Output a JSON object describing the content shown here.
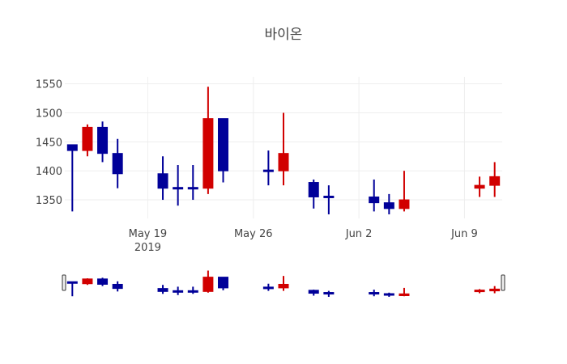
{
  "chart_data": {
    "type": "candlestick",
    "title": "바이온",
    "xlabel": "",
    "ylabel": "",
    "ylim": [
      1318,
      1562
    ],
    "y_ticks": [
      1350,
      1400,
      1450,
      1500,
      1550
    ],
    "x_ticks": [
      {
        "label": "May 19",
        "sub": "2019",
        "date": "2019-05-19"
      },
      {
        "label": "May 26",
        "sub": "",
        "date": "2019-05-26"
      },
      {
        "label": "Jun 2",
        "sub": "",
        "date": "2019-06-02"
      },
      {
        "label": "Jun 9",
        "sub": "",
        "date": "2019-06-09"
      }
    ],
    "x_range": [
      "2019-05-13T12:00",
      "2019-06-11T12:00"
    ],
    "grid": true,
    "increasing_color": "#d10000",
    "decreasing_color": "#000099",
    "rangeslider": true,
    "candles": [
      {
        "date": "2019-05-14",
        "open": 1445,
        "high": 1445,
        "low": 1330,
        "close": 1435
      },
      {
        "date": "2019-05-15",
        "open": 1435,
        "high": 1480,
        "low": 1425,
        "close": 1475
      },
      {
        "date": "2019-05-16",
        "open": 1475,
        "high": 1485,
        "low": 1415,
        "close": 1430
      },
      {
        "date": "2019-05-17",
        "open": 1430,
        "high": 1455,
        "low": 1370,
        "close": 1395
      },
      {
        "date": "2019-05-20",
        "open": 1395,
        "high": 1425,
        "low": 1350,
        "close": 1370
      },
      {
        "date": "2019-05-21",
        "open": 1370,
        "high": 1410,
        "low": 1340,
        "close": 1370
      },
      {
        "date": "2019-05-22",
        "open": 1370,
        "high": 1410,
        "low": 1350,
        "close": 1370
      },
      {
        "date": "2019-05-23",
        "open": 1370,
        "high": 1545,
        "low": 1360,
        "close": 1490
      },
      {
        "date": "2019-05-24",
        "open": 1490,
        "high": 1490,
        "low": 1380,
        "close": 1400
      },
      {
        "date": "2019-05-27",
        "open": 1400,
        "high": 1435,
        "low": 1375,
        "close": 1400
      },
      {
        "date": "2019-05-28",
        "open": 1400,
        "high": 1500,
        "low": 1375,
        "close": 1430
      },
      {
        "date": "2019-05-30",
        "open": 1380,
        "high": 1385,
        "low": 1335,
        "close": 1355
      },
      {
        "date": "2019-05-31",
        "open": 1355,
        "high": 1375,
        "low": 1325,
        "close": 1355
      },
      {
        "date": "2019-06-03",
        "open": 1355,
        "high": 1385,
        "low": 1330,
        "close": 1345
      },
      {
        "date": "2019-06-04",
        "open": 1345,
        "high": 1360,
        "low": 1325,
        "close": 1335
      },
      {
        "date": "2019-06-05",
        "open": 1335,
        "high": 1400,
        "low": 1330,
        "close": 1350
      },
      {
        "date": "2019-06-10",
        "open": 1370,
        "high": 1390,
        "low": 1355,
        "close": 1375
      },
      {
        "date": "2019-06-11",
        "open": 1375,
        "high": 1415,
        "low": 1355,
        "close": 1390
      }
    ]
  }
}
